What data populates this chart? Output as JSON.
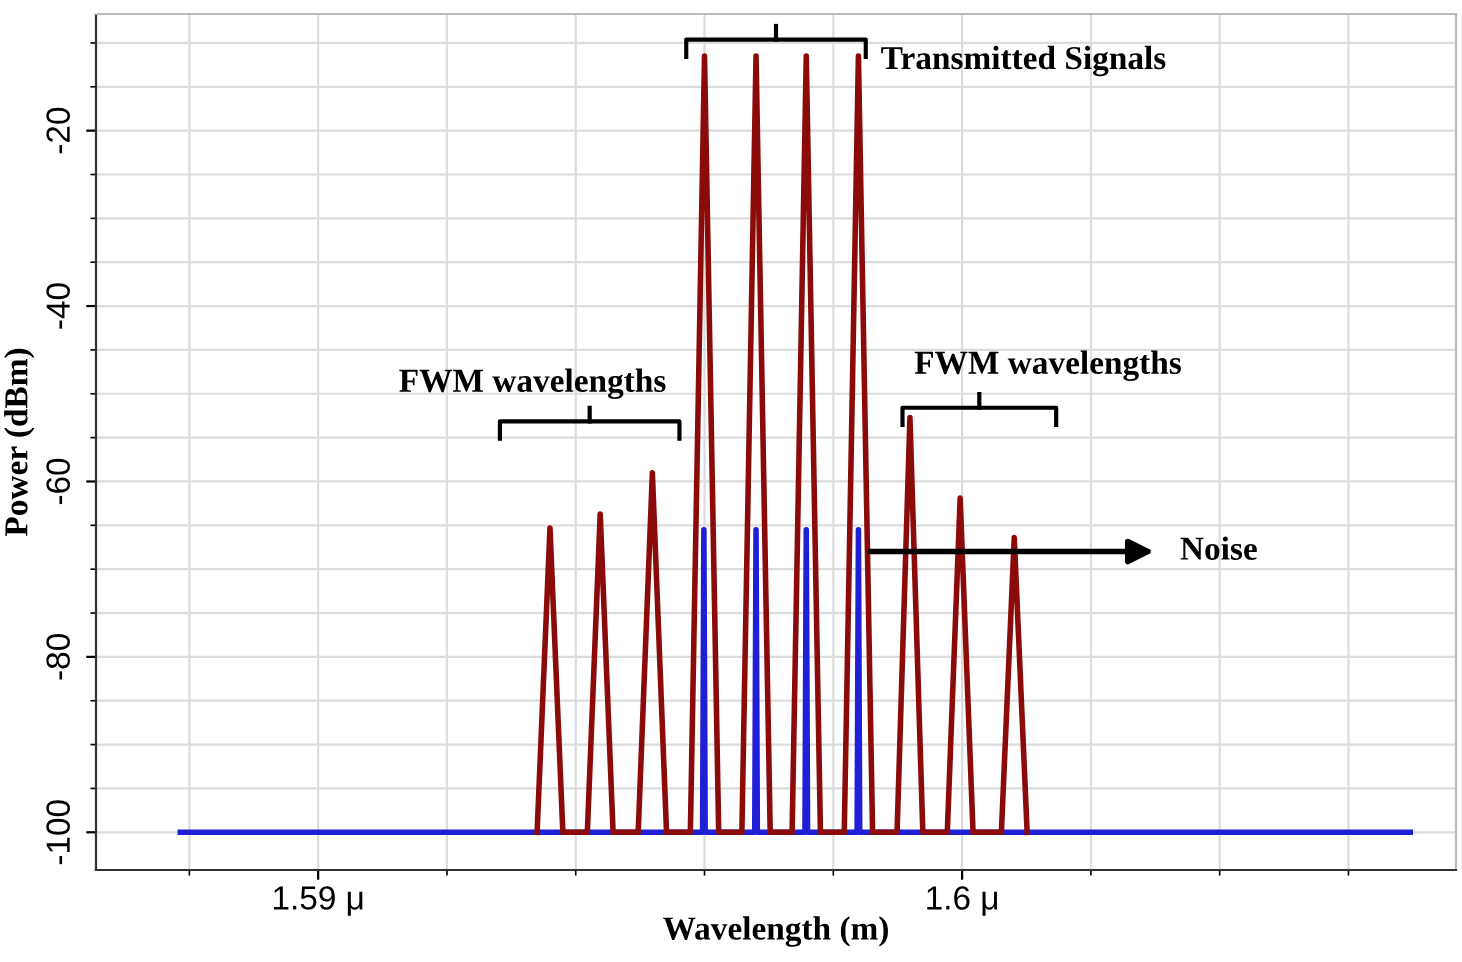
{
  "chart_data": {
    "type": "line",
    "xlabel": "Wavelength (m)",
    "ylabel": "Power (dBm)",
    "xlim": [
      1.58655,
      1.60767
    ],
    "ylim": [
      -104.3,
      -6.7
    ],
    "xticks": [
      {
        "value": 1.59,
        "label": "1.59 μ"
      },
      {
        "value": 1.6,
        "label": "1.6 μ"
      }
    ],
    "yticks": [
      -100,
      -80,
      -60,
      -40,
      -20
    ],
    "grid": true,
    "marker": "none",
    "line_style": "solid",
    "series": [
      {
        "color": "#1f1fd6",
        "x": [
          1.58786,
          1.59597,
          1.59599,
          1.59601,
          1.59678,
          1.5968,
          1.59682,
          1.59756,
          1.59758,
          1.5976,
          1.59837,
          1.59839,
          1.59841,
          1.60696
        ],
        "values": [
          -100,
          -100,
          -65.5,
          -100,
          -100,
          -65.5,
          -100,
          -100,
          -65.5,
          -100,
          -100,
          -65.5,
          -100,
          -100
        ]
      },
      {
        "color": "#8b0a0a",
        "x": [
          1.5934,
          1.5936,
          1.5938,
          1.59418,
          1.59438,
          1.59458,
          1.59497,
          1.59519,
          1.59541,
          1.59578,
          1.596,
          1.59622,
          1.59658,
          1.5968,
          1.59702,
          1.59736,
          1.59758,
          1.5978,
          1.59817,
          1.59839,
          1.59861,
          1.59899,
          1.59919,
          1.59939,
          1.59977,
          1.59997,
          1.60017,
          1.60061,
          1.60081,
          1.60101
        ],
        "values": [
          -100,
          -65.3,
          -100,
          -100,
          -63.7,
          -100,
          -100,
          -59,
          -100,
          -100,
          -11.5,
          -100,
          -100,
          -11.5,
          -100,
          -100,
          -11.5,
          -100,
          -100,
          -11.5,
          -100,
          -100,
          -52.7,
          -100,
          -100,
          -61.9,
          -100,
          -100,
          -66.4,
          -100
        ]
      }
    ],
    "annotations": [
      "Transmitted Signals",
      "FWM wavelengths",
      "FWM wavelengths",
      "Noise"
    ]
  }
}
